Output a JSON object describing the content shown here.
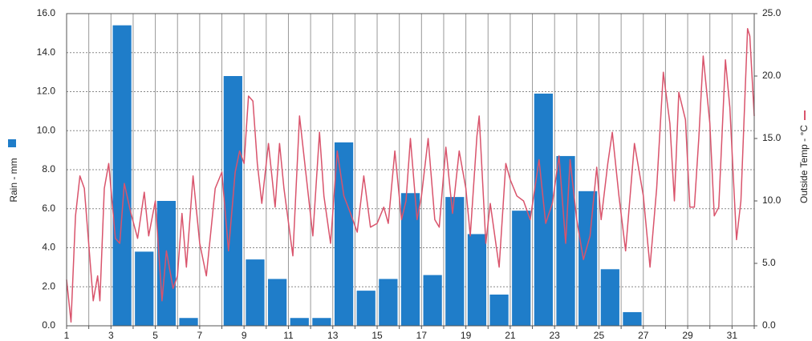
{
  "chart_data": {
    "type": "bar",
    "xlim": [
      1,
      32
    ],
    "xticks": [
      1,
      3,
      5,
      7,
      9,
      11,
      13,
      15,
      17,
      19,
      21,
      23,
      25,
      27,
      29,
      31
    ],
    "x_gridlines": [
      2,
      4,
      6,
      8,
      10,
      12,
      14,
      16,
      18,
      20,
      22,
      24,
      26,
      28,
      30,
      32
    ],
    "ylim": [
      0,
      16
    ],
    "yticks": [
      {
        "value": 0,
        "label": "0.0"
      },
      {
        "value": 2,
        "label": "2.0"
      },
      {
        "value": 4,
        "label": "4.0"
      },
      {
        "value": 6,
        "label": "6.0"
      },
      {
        "value": 8,
        "label": "8.0"
      },
      {
        "value": 10,
        "label": "10.0"
      },
      {
        "value": 12,
        "label": "12.0"
      },
      {
        "value": 14,
        "label": "14.0"
      },
      {
        "value": 16,
        "label": "16.0"
      }
    ],
    "y2lim": [
      0,
      25
    ],
    "y2ticks": [
      {
        "value": 0,
        "label": "0.0"
      },
      {
        "value": 5,
        "label": "5.0"
      },
      {
        "value": 10,
        "label": "10.0"
      },
      {
        "value": 15,
        "label": "15.0"
      },
      {
        "value": 20,
        "label": "20.0"
      },
      {
        "value": 25,
        "label": "25.0"
      }
    ],
    "grid": true,
    "series": [
      {
        "name": "Rain - mm",
        "type": "bar",
        "color": "#1f7dc9",
        "x": [
          3.5,
          4.5,
          5.5,
          6.5,
          8.5,
          9.5,
          10.5,
          11.5,
          12.5,
          13.5,
          14.5,
          15.5,
          16.5,
          17.5,
          18.5,
          19.5,
          20.5,
          21.5,
          22.5,
          23.5,
          24.5,
          25.5,
          26.5
        ],
        "values": [
          15.4,
          3.8,
          6.4,
          0.4,
          12.8,
          3.4,
          2.4,
          0.4,
          0.4,
          9.4,
          1.8,
          2.4,
          6.8,
          2.6,
          6.6,
          4.7,
          1.6,
          5.9,
          11.9,
          8.7,
          6.9,
          2.9,
          0.7
        ]
      },
      {
        "name": "Outside Temp - °C",
        "type": "line",
        "axis": "y2",
        "color": "#d9546c",
        "x": [
          1,
          1.2,
          1.4,
          1.6,
          1.8,
          2.2,
          2.4,
          2.5,
          2.7,
          2.9,
          3.2,
          3.4,
          3.6,
          3.9,
          4.2,
          4.5,
          4.7,
          5,
          5.3,
          5.5,
          5.8,
          6,
          6.2,
          6.4,
          6.7,
          7,
          7.3,
          7.7,
          8,
          8.3,
          8.6,
          8.8,
          9,
          9.2,
          9.4,
          9.6,
          9.8,
          10.1,
          10.4,
          10.6,
          10.8,
          11.2,
          11.5,
          11.8,
          12.1,
          12.4,
          12.6,
          12.9,
          13.2,
          13.5,
          13.8,
          14.1,
          14.4,
          14.7,
          15,
          15.3,
          15.5,
          15.8,
          16.1,
          16.3,
          16.5,
          16.8,
          17,
          17.3,
          17.6,
          17.8,
          18.1,
          18.4,
          18.7,
          19,
          19.2,
          19.5,
          19.6,
          19.9,
          20.1,
          20.5,
          20.8,
          21,
          21.3,
          21.6,
          21.9,
          22.3,
          22.6,
          22.9,
          23.2,
          23.5,
          23.7,
          24,
          24.3,
          24.6,
          24.9,
          25.1,
          25.4,
          25.6,
          25.9,
          26.2,
          26.6,
          27,
          27.3,
          27.6,
          27.9,
          28.2,
          28.4,
          28.6,
          28.9,
          29.1,
          29.3,
          29.5,
          29.7,
          30,
          30.2,
          30.4,
          30.7,
          30.9,
          31.2,
          31.4,
          31.7,
          31.8,
          32
        ],
        "values": [
          3.7,
          0.3,
          8.8,
          12,
          11,
          2,
          4,
          2,
          11,
          13,
          7,
          6.6,
          11.4,
          9,
          7,
          10.7,
          7.2,
          10,
          2,
          6,
          3,
          4,
          9,
          4.7,
          12,
          6.6,
          4,
          11,
          12.3,
          6,
          12.3,
          14,
          13,
          18.4,
          18,
          13,
          9.8,
          14.6,
          9.5,
          14.6,
          11,
          5.6,
          16.8,
          12,
          7.2,
          15.5,
          10.4,
          6.6,
          14,
          10.4,
          9,
          7.5,
          12,
          7.9,
          8.2,
          9.5,
          8.2,
          14,
          8.5,
          10,
          15,
          8.5,
          10.4,
          15,
          8.5,
          7.9,
          14.3,
          9,
          14,
          11,
          7.2,
          15.2,
          16.8,
          6.6,
          9.8,
          4.7,
          13,
          11.7,
          10.4,
          10,
          8.5,
          13.3,
          8.2,
          9.8,
          13.6,
          6.6,
          13.3,
          8.5,
          5.3,
          7.2,
          12.7,
          8.5,
          13,
          15.5,
          10.4,
          6,
          14.6,
          10.4,
          4.7,
          11,
          20.3,
          16.2,
          10,
          18.7,
          16.5,
          9.5,
          9.5,
          15,
          21.6,
          16.2,
          8.8,
          9.5,
          21.3,
          17.5,
          6.9,
          10,
          23.8,
          23.2,
          16.8
        ]
      }
    ]
  }
}
